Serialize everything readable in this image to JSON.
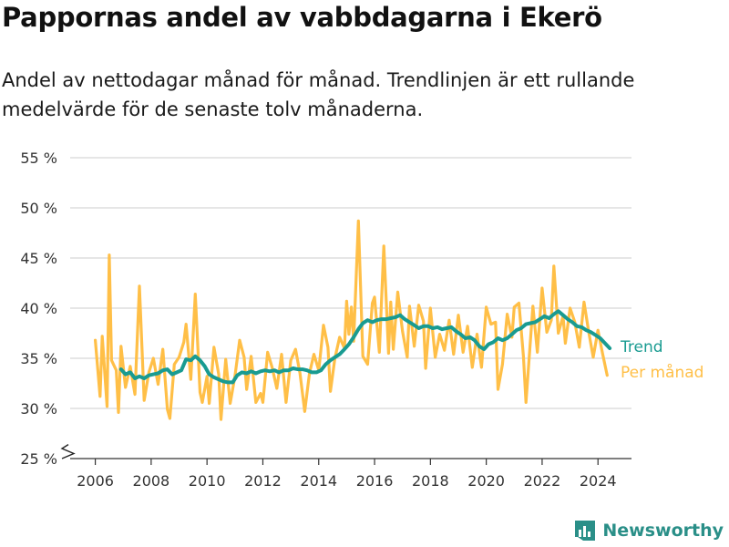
{
  "chart_data": {
    "type": "line",
    "title": "Pappornas andel av vabbdagarna i Ekerö",
    "subtitle": "Andel av nettodagar månad för månad. Trendlinjen är ett rullande medelvärde för de senaste tolv månaderna.",
    "xlabel": "",
    "ylabel": "",
    "xlim": [
      2005.1,
      2025.2
    ],
    "ylim": [
      25,
      55
    ],
    "x_ticks": [
      2006,
      2008,
      2010,
      2012,
      2014,
      2016,
      2018,
      2020,
      2022,
      2024
    ],
    "x_tick_labels": [
      "2006",
      "2008",
      "2010",
      "2012",
      "2014",
      "2016",
      "2018",
      "2020",
      "2022",
      "2024"
    ],
    "y_ticks": [
      25,
      30,
      35,
      40,
      45,
      50,
      55
    ],
    "y_tick_labels": [
      "25 %",
      "30 %",
      "35 %",
      "40 %",
      "45 %",
      "50 %",
      "55 %"
    ],
    "grid": true,
    "axis_break": true,
    "legend_placement": "right, at line ends",
    "series": [
      {
        "name": "Per månad",
        "color": "#FFBF47",
        "points": [
          [
            2006.0,
            36.8
          ],
          [
            2006.17,
            31.2
          ],
          [
            2006.25,
            37.2
          ],
          [
            2006.42,
            30.2
          ],
          [
            2006.5,
            45.3
          ],
          [
            2006.58,
            34.8
          ],
          [
            2006.75,
            33.8
          ],
          [
            2006.83,
            29.6
          ],
          [
            2006.92,
            36.2
          ],
          [
            2007.08,
            32.1
          ],
          [
            2007.25,
            34.2
          ],
          [
            2007.42,
            31.4
          ],
          [
            2007.58,
            42.2
          ],
          [
            2007.75,
            30.8
          ],
          [
            2007.92,
            33.6
          ],
          [
            2008.08,
            35.0
          ],
          [
            2008.25,
            32.4
          ],
          [
            2008.42,
            35.9
          ],
          [
            2008.58,
            29.9
          ],
          [
            2008.67,
            29.0
          ],
          [
            2008.83,
            34.4
          ],
          [
            2009.0,
            35.1
          ],
          [
            2009.17,
            36.6
          ],
          [
            2009.25,
            38.4
          ],
          [
            2009.42,
            32.9
          ],
          [
            2009.58,
            41.4
          ],
          [
            2009.75,
            31.6
          ],
          [
            2009.83,
            30.6
          ],
          [
            2010.0,
            33.2
          ],
          [
            2010.08,
            30.5
          ],
          [
            2010.25,
            36.1
          ],
          [
            2010.42,
            33.4
          ],
          [
            2010.5,
            28.9
          ],
          [
            2010.67,
            34.9
          ],
          [
            2010.83,
            30.5
          ],
          [
            2011.0,
            33.2
          ],
          [
            2011.17,
            36.8
          ],
          [
            2011.33,
            35.1
          ],
          [
            2011.42,
            31.9
          ],
          [
            2011.58,
            35.2
          ],
          [
            2011.75,
            30.6
          ],
          [
            2011.92,
            31.5
          ],
          [
            2012.0,
            30.6
          ],
          [
            2012.17,
            35.6
          ],
          [
            2012.33,
            34.1
          ],
          [
            2012.5,
            32.0
          ],
          [
            2012.67,
            35.4
          ],
          [
            2012.83,
            30.6
          ],
          [
            2013.0,
            34.8
          ],
          [
            2013.17,
            35.9
          ],
          [
            2013.33,
            33.5
          ],
          [
            2013.5,
            29.7
          ],
          [
            2013.67,
            33.5
          ],
          [
            2013.83,
            35.4
          ],
          [
            2014.0,
            33.8
          ],
          [
            2014.17,
            38.3
          ],
          [
            2014.33,
            36.1
          ],
          [
            2014.42,
            31.7
          ],
          [
            2014.58,
            35.0
          ],
          [
            2014.75,
            37.1
          ],
          [
            2014.92,
            36.0
          ],
          [
            2015.0,
            40.7
          ],
          [
            2015.08,
            37.4
          ],
          [
            2015.17,
            40.1
          ],
          [
            2015.25,
            36.7
          ],
          [
            2015.42,
            48.7
          ],
          [
            2015.58,
            35.2
          ],
          [
            2015.75,
            34.4
          ],
          [
            2015.92,
            40.5
          ],
          [
            2016.0,
            41.1
          ],
          [
            2016.17,
            35.6
          ],
          [
            2016.33,
            46.2
          ],
          [
            2016.5,
            35.5
          ],
          [
            2016.58,
            40.6
          ],
          [
            2016.67,
            35.9
          ],
          [
            2016.83,
            41.6
          ],
          [
            2017.0,
            37.7
          ],
          [
            2017.17,
            35.1
          ],
          [
            2017.25,
            40.2
          ],
          [
            2017.42,
            36.2
          ],
          [
            2017.58,
            40.3
          ],
          [
            2017.75,
            38.7
          ],
          [
            2017.83,
            34.0
          ],
          [
            2018.0,
            40.0
          ],
          [
            2018.17,
            35.1
          ],
          [
            2018.33,
            37.4
          ],
          [
            2018.5,
            35.8
          ],
          [
            2018.67,
            38.8
          ],
          [
            2018.83,
            35.4
          ],
          [
            2019.0,
            39.3
          ],
          [
            2019.17,
            35.6
          ],
          [
            2019.33,
            38.2
          ],
          [
            2019.5,
            34.1
          ],
          [
            2019.67,
            37.4
          ],
          [
            2019.83,
            34.1
          ],
          [
            2020.0,
            40.1
          ],
          [
            2020.17,
            38.4
          ],
          [
            2020.33,
            38.6
          ],
          [
            2020.42,
            31.9
          ],
          [
            2020.58,
            34.4
          ],
          [
            2020.75,
            39.4
          ],
          [
            2020.92,
            37.1
          ],
          [
            2021.0,
            40.1
          ],
          [
            2021.17,
            40.5
          ],
          [
            2021.33,
            35.2
          ],
          [
            2021.42,
            30.6
          ],
          [
            2021.67,
            40.2
          ],
          [
            2021.83,
            35.6
          ],
          [
            2022.0,
            42.0
          ],
          [
            2022.17,
            37.6
          ],
          [
            2022.33,
            38.8
          ],
          [
            2022.42,
            44.2
          ],
          [
            2022.58,
            37.5
          ],
          [
            2022.75,
            39.2
          ],
          [
            2022.83,
            36.5
          ],
          [
            2023.0,
            40.0
          ],
          [
            2023.17,
            38.6
          ],
          [
            2023.33,
            36.1
          ],
          [
            2023.5,
            40.6
          ],
          [
            2023.67,
            37.6
          ],
          [
            2023.83,
            35.1
          ],
          [
            2024.0,
            37.8
          ],
          [
            2024.17,
            35.4
          ],
          [
            2024.33,
            33.3
          ]
        ]
      },
      {
        "name": "Trend",
        "color": "#199B91",
        "points": [
          [
            2006.92,
            33.9
          ],
          [
            2007.08,
            33.4
          ],
          [
            2007.25,
            33.6
          ],
          [
            2007.42,
            33.0
          ],
          [
            2007.58,
            33.2
          ],
          [
            2007.75,
            33.0
          ],
          [
            2007.92,
            33.3
          ],
          [
            2008.08,
            33.4
          ],
          [
            2008.25,
            33.5
          ],
          [
            2008.42,
            33.8
          ],
          [
            2008.58,
            33.9
          ],
          [
            2008.75,
            33.4
          ],
          [
            2008.92,
            33.6
          ],
          [
            2009.08,
            33.8
          ],
          [
            2009.25,
            34.9
          ],
          [
            2009.42,
            34.8
          ],
          [
            2009.58,
            35.2
          ],
          [
            2009.75,
            34.8
          ],
          [
            2009.92,
            34.2
          ],
          [
            2010.08,
            33.4
          ],
          [
            2010.25,
            33.1
          ],
          [
            2010.42,
            32.9
          ],
          [
            2010.58,
            32.7
          ],
          [
            2010.75,
            32.6
          ],
          [
            2010.92,
            32.6
          ],
          [
            2011.08,
            33.3
          ],
          [
            2011.25,
            33.6
          ],
          [
            2011.42,
            33.5
          ],
          [
            2011.58,
            33.7
          ],
          [
            2011.75,
            33.5
          ],
          [
            2011.92,
            33.7
          ],
          [
            2012.08,
            33.8
          ],
          [
            2012.25,
            33.7
          ],
          [
            2012.42,
            33.8
          ],
          [
            2012.58,
            33.6
          ],
          [
            2012.75,
            33.8
          ],
          [
            2012.92,
            33.8
          ],
          [
            2013.08,
            34.0
          ],
          [
            2013.25,
            33.9
          ],
          [
            2013.42,
            33.9
          ],
          [
            2013.58,
            33.8
          ],
          [
            2013.75,
            33.6
          ],
          [
            2013.92,
            33.6
          ],
          [
            2014.08,
            33.8
          ],
          [
            2014.25,
            34.4
          ],
          [
            2014.42,
            34.8
          ],
          [
            2014.58,
            35.1
          ],
          [
            2014.75,
            35.4
          ],
          [
            2014.92,
            35.9
          ],
          [
            2015.08,
            36.4
          ],
          [
            2015.25,
            37.1
          ],
          [
            2015.42,
            37.9
          ],
          [
            2015.58,
            38.5
          ],
          [
            2015.75,
            38.8
          ],
          [
            2015.92,
            38.6
          ],
          [
            2016.08,
            38.8
          ],
          [
            2016.25,
            38.9
          ],
          [
            2016.42,
            38.9
          ],
          [
            2016.58,
            39.0
          ],
          [
            2016.75,
            39.1
          ],
          [
            2016.92,
            39.3
          ],
          [
            2017.08,
            38.9
          ],
          [
            2017.25,
            38.6
          ],
          [
            2017.42,
            38.3
          ],
          [
            2017.58,
            38.0
          ],
          [
            2017.75,
            38.2
          ],
          [
            2017.92,
            38.2
          ],
          [
            2018.08,
            38.0
          ],
          [
            2018.25,
            38.1
          ],
          [
            2018.42,
            37.9
          ],
          [
            2018.58,
            38.0
          ],
          [
            2018.75,
            38.1
          ],
          [
            2018.92,
            37.7
          ],
          [
            2019.08,
            37.4
          ],
          [
            2019.25,
            37.0
          ],
          [
            2019.42,
            37.1
          ],
          [
            2019.58,
            36.8
          ],
          [
            2019.75,
            36.2
          ],
          [
            2019.92,
            35.9
          ],
          [
            2020.08,
            36.4
          ],
          [
            2020.25,
            36.6
          ],
          [
            2020.42,
            37.0
          ],
          [
            2020.58,
            36.8
          ],
          [
            2020.75,
            37.0
          ],
          [
            2020.92,
            37.4
          ],
          [
            2021.08,
            37.8
          ],
          [
            2021.25,
            38.0
          ],
          [
            2021.42,
            38.4
          ],
          [
            2021.58,
            38.5
          ],
          [
            2021.75,
            38.6
          ],
          [
            2021.92,
            38.9
          ],
          [
            2022.08,
            39.2
          ],
          [
            2022.25,
            39.0
          ],
          [
            2022.42,
            39.4
          ],
          [
            2022.58,
            39.7
          ],
          [
            2022.75,
            39.3
          ],
          [
            2022.92,
            38.9
          ],
          [
            2023.08,
            38.6
          ],
          [
            2023.25,
            38.2
          ],
          [
            2023.42,
            38.1
          ],
          [
            2023.58,
            37.8
          ],
          [
            2023.75,
            37.6
          ],
          [
            2023.92,
            37.3
          ],
          [
            2024.08,
            37.0
          ],
          [
            2024.25,
            36.5
          ],
          [
            2024.42,
            36.0
          ]
        ]
      }
    ]
  },
  "brand": {
    "name": "Newsworthy",
    "color": "#2A8F88",
    "icon": "newsworthy-logo-icon"
  }
}
